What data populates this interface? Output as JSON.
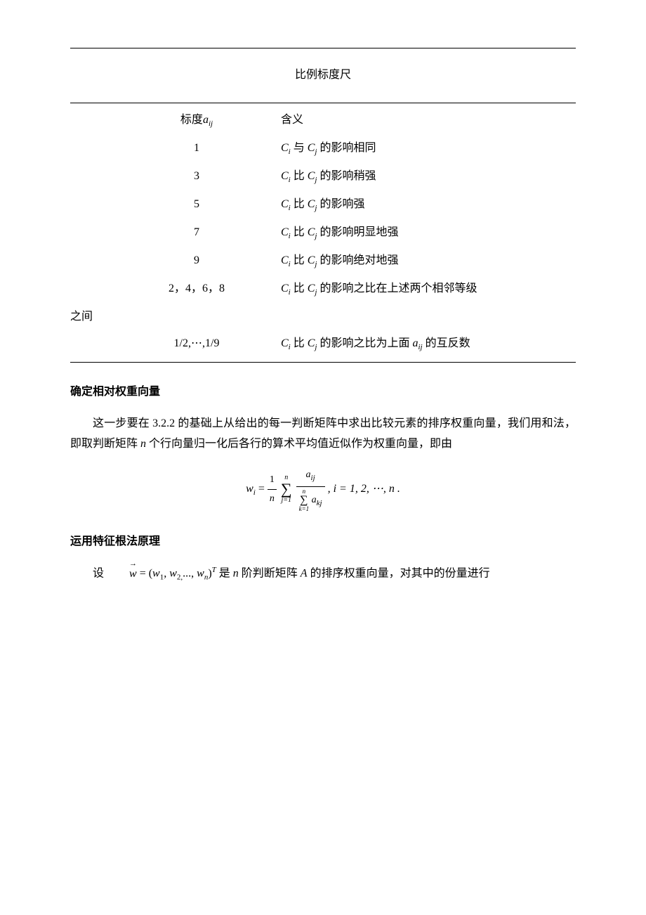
{
  "title": "比例标度尺",
  "table": {
    "header": {
      "left_prefix": "标度",
      "left_var": "a",
      "left_sub": "ij",
      "right": "含义"
    },
    "rows": [
      {
        "scale": "1",
        "ci": "C",
        "ci_sub": "i",
        "mid": " 与 ",
        "cj": "C",
        "cj_sub": "j",
        "suffix": " 的影响相同"
      },
      {
        "scale": "3",
        "ci": "C",
        "ci_sub": "i",
        "mid": " 比 ",
        "cj": "C",
        "cj_sub": "j",
        "suffix": " 的影响稍强"
      },
      {
        "scale": "5",
        "ci": "C",
        "ci_sub": "i",
        "mid": " 比 ",
        "cj": "C",
        "cj_sub": "j",
        "suffix": " 的影响强"
      },
      {
        "scale": "7",
        "ci": "C",
        "ci_sub": "i",
        "mid": " 比 ",
        "cj": "C",
        "cj_sub": "j",
        "suffix": " 的影响明显地强"
      },
      {
        "scale": "9",
        "ci": "C",
        "ci_sub": "i",
        "mid": " 比 ",
        "cj": "C",
        "cj_sub": "j",
        "suffix": " 的影响绝对地强"
      },
      {
        "scale": "2，4，6，8",
        "ci": "C",
        "ci_sub": "i",
        "mid": " 比 ",
        "cj": "C",
        "cj_sub": "j",
        "suffix": " 的影响之比在上述两个相邻等级"
      }
    ],
    "wrap_suffix": "之间",
    "last_row": {
      "scale": "1/2,⋯,1/9",
      "ci": "C",
      "ci_sub": "i",
      "mid": " 比 ",
      "cj": "C",
      "cj_sub": "j",
      "suffix_a": " 的影响之比为上面 ",
      "a_var": "a",
      "a_sub": "ij",
      "suffix_b": " 的互反数"
    }
  },
  "section1": {
    "heading": "确定相对权重向量",
    "para_a": "这一步要在 3.2.2 的基础上从给出的每一判断矩阵中求出比较元素的排序权重向量，我们用和法，即取判断矩阵 ",
    "n_var": "n",
    "para_b": " 个行向量归一化后各行的算术平均值近似作为权重向量，即由"
  },
  "formula": {
    "w": "w",
    "w_sub": "i",
    "eq": " = ",
    "one": "1",
    "n": "n",
    "sum_top": "n",
    "sum_bot": "j=1",
    "a_num": "a",
    "a_num_sub": "ij",
    "den_sum_top": "n",
    "den_sum_bot": "k=1",
    "a_den": "a",
    "a_den_sub": "kj",
    "tail": ",   i = 1, 2, ⋯, n ."
  },
  "section2": {
    "heading": "运用特征根法原理",
    "para_a": "设 ",
    "w": "w",
    "eq": " = (",
    "w1": "w",
    "w1_sub": "1",
    "comma1": ", ",
    "w2": "w",
    "w2_sub": "2,",
    "dots": "..., ",
    "wn": "w",
    "wn_sub": "n",
    "close": ")",
    "T": "T",
    "para_b": " 是 ",
    "n_var": "n",
    "para_c": " 阶判断矩阵 ",
    "A": "A",
    "para_d": " 的排序权重向量，对其中的份量进行"
  }
}
